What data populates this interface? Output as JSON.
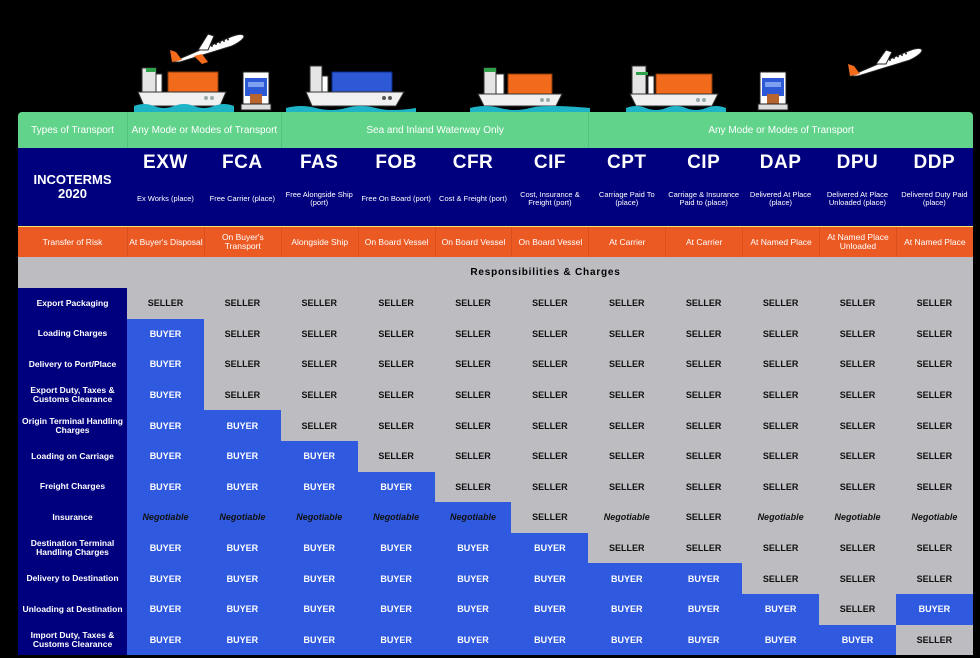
{
  "transport_row": {
    "label": "Types of Transport",
    "groups": [
      {
        "label": "Any Mode or Modes of Transport",
        "span": 2
      },
      {
        "label": "Sea and Inland Waterway Only",
        "span": 4
      },
      {
        "label": "Any Mode or Modes of Transport",
        "span": 5
      }
    ]
  },
  "illustration": {
    "icons": [
      "airplane-icon",
      "container-ship-icon",
      "truck-icon",
      "container-ship-icon",
      "container-ship-icon",
      "container-ship-icon",
      "truck-icon",
      "airplane-icon"
    ]
  },
  "header": {
    "title_line1": "INCOTERMS",
    "title_line2": "2020",
    "terms": [
      {
        "code": "EXW",
        "name": "Ex Works (place)"
      },
      {
        "code": "FCA",
        "name": "Free Carrier (place)"
      },
      {
        "code": "FAS",
        "name": "Free Alongside Ship (port)"
      },
      {
        "code": "FOB",
        "name": "Free On Board (port)"
      },
      {
        "code": "CFR",
        "name": "Cost & Freight (port)"
      },
      {
        "code": "CIF",
        "name": "Cost, Insurance & Freight (port)"
      },
      {
        "code": "CPT",
        "name": "Carriage Paid To (place)"
      },
      {
        "code": "CIP",
        "name": "Carriage & Insurance Paid to (place)"
      },
      {
        "code": "DAP",
        "name": "Delivered At Place (place)"
      },
      {
        "code": "DPU",
        "name": "Delivered At Place Unloaded (place)"
      },
      {
        "code": "DDP",
        "name": "Delivered Duty Paid (place)"
      }
    ]
  },
  "risk": {
    "label": "Transfer of Risk",
    "values": [
      "At Buyer's Disposal",
      "On Buyer's Transport",
      "Alongside Ship",
      "On Board Vessel",
      "On Board Vessel",
      "On Board Vessel",
      "At Carrier",
      "At Carrier",
      "At Named Place",
      "At Named Place Unloaded",
      "At Named Place"
    ]
  },
  "section_title": "Responsibilities & Charges",
  "rows": [
    {
      "label": "Export Packaging",
      "values": [
        "SELLER",
        "SELLER",
        "SELLER",
        "SELLER",
        "SELLER",
        "SELLER",
        "SELLER",
        "SELLER",
        "SELLER",
        "SELLER",
        "SELLER"
      ]
    },
    {
      "label": "Loading Charges",
      "values": [
        "BUYER",
        "SELLER",
        "SELLER",
        "SELLER",
        "SELLER",
        "SELLER",
        "SELLER",
        "SELLER",
        "SELLER",
        "SELLER",
        "SELLER"
      ]
    },
    {
      "label": "Delivery to Port/Place",
      "values": [
        "BUYER",
        "SELLER",
        "SELLER",
        "SELLER",
        "SELLER",
        "SELLER",
        "SELLER",
        "SELLER",
        "SELLER",
        "SELLER",
        "SELLER"
      ]
    },
    {
      "label": "Export Duty, Taxes & Customs Clearance",
      "values": [
        "BUYER",
        "SELLER",
        "SELLER",
        "SELLER",
        "SELLER",
        "SELLER",
        "SELLER",
        "SELLER",
        "SELLER",
        "SELLER",
        "SELLER"
      ]
    },
    {
      "label": "Origin Terminal Handling Charges",
      "values": [
        "BUYER",
        "BUYER",
        "SELLER",
        "SELLER",
        "SELLER",
        "SELLER",
        "SELLER",
        "SELLER",
        "SELLER",
        "SELLER",
        "SELLER"
      ]
    },
    {
      "label": "Loading on Carriage",
      "values": [
        "BUYER",
        "BUYER",
        "BUYER",
        "SELLER",
        "SELLER",
        "SELLER",
        "SELLER",
        "SELLER",
        "SELLER",
        "SELLER",
        "SELLER"
      ]
    },
    {
      "label": "Freight Charges",
      "values": [
        "BUYER",
        "BUYER",
        "BUYER",
        "BUYER",
        "SELLER",
        "SELLER",
        "SELLER",
        "SELLER",
        "SELLER",
        "SELLER",
        "SELLER"
      ]
    },
    {
      "label": "Insurance",
      "values": [
        "Negotiable",
        "Negotiable",
        "Negotiable",
        "Negotiable",
        "Negotiable",
        "SELLER",
        "Negotiable",
        "SELLER",
        "Negotiable",
        "Negotiable",
        "Negotiable"
      ]
    },
    {
      "label": "Destination Terminal Handling Charges",
      "values": [
        "BUYER",
        "BUYER",
        "BUYER",
        "BUYER",
        "BUYER",
        "BUYER",
        "SELLER",
        "SELLER",
        "SELLER",
        "SELLER",
        "SELLER"
      ]
    },
    {
      "label": "Delivery to Destination",
      "values": [
        "BUYER",
        "BUYER",
        "BUYER",
        "BUYER",
        "BUYER",
        "BUYER",
        "BUYER",
        "BUYER",
        "SELLER",
        "SELLER",
        "SELLER"
      ]
    },
    {
      "label": "Unloading at Destination",
      "values": [
        "BUYER",
        "BUYER",
        "BUYER",
        "BUYER",
        "BUYER",
        "BUYER",
        "BUYER",
        "BUYER",
        "BUYER",
        "SELLER",
        "BUYER"
      ]
    },
    {
      "label": "Import Duty, Taxes & Customs Clearance",
      "values": [
        "BUYER",
        "BUYER",
        "BUYER",
        "BUYER",
        "BUYER",
        "BUYER",
        "BUYER",
        "BUYER",
        "BUYER",
        "BUYER",
        "SELLER"
      ]
    }
  ],
  "colors": {
    "transport_green": "#62d38b",
    "header_navy": "#00007f",
    "risk_orange": "#ec5a24",
    "seller_gray": "#bdbcc1",
    "buyer_blue": "#2f5ae0"
  }
}
